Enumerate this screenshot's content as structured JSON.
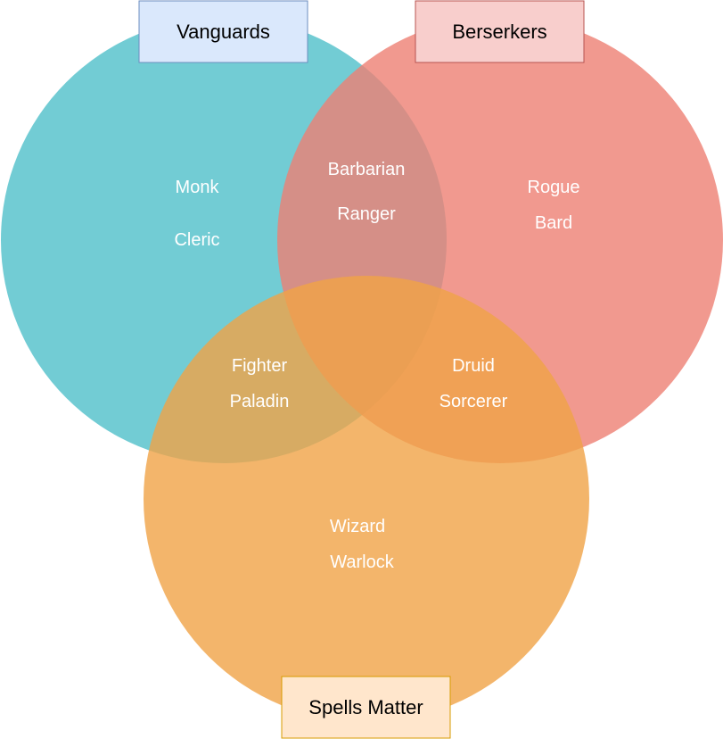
{
  "diagram": {
    "sets": {
      "vanguards": {
        "label": "Vanguards",
        "color": "#4FBFC9",
        "label_fill": "#DAE8FC",
        "label_border": "#6C8EBF"
      },
      "berserkers": {
        "label": "Berserkers",
        "color": "#EE7F73",
        "label_fill": "#F8CECC",
        "label_border": "#B85450"
      },
      "spells_matter": {
        "label": "Spells Matter",
        "color": "#F0A346",
        "label_fill": "#FFE6CC",
        "label_border": "#D79B00"
      }
    },
    "regions": {
      "vanguards_only": [
        "Monk",
        "Cleric"
      ],
      "vanguards_berserkers": [
        "Barbarian",
        "Ranger"
      ],
      "berserkers_only": [
        "Rogue",
        "Bard"
      ],
      "vanguards_spells": [
        "Fighter",
        "Paladin"
      ],
      "berserkers_spells": [
        "Druid",
        "Sorcerer"
      ],
      "spells_only": [
        "Wizard",
        "Warlock"
      ]
    },
    "circle_opacity": 0.8
  }
}
